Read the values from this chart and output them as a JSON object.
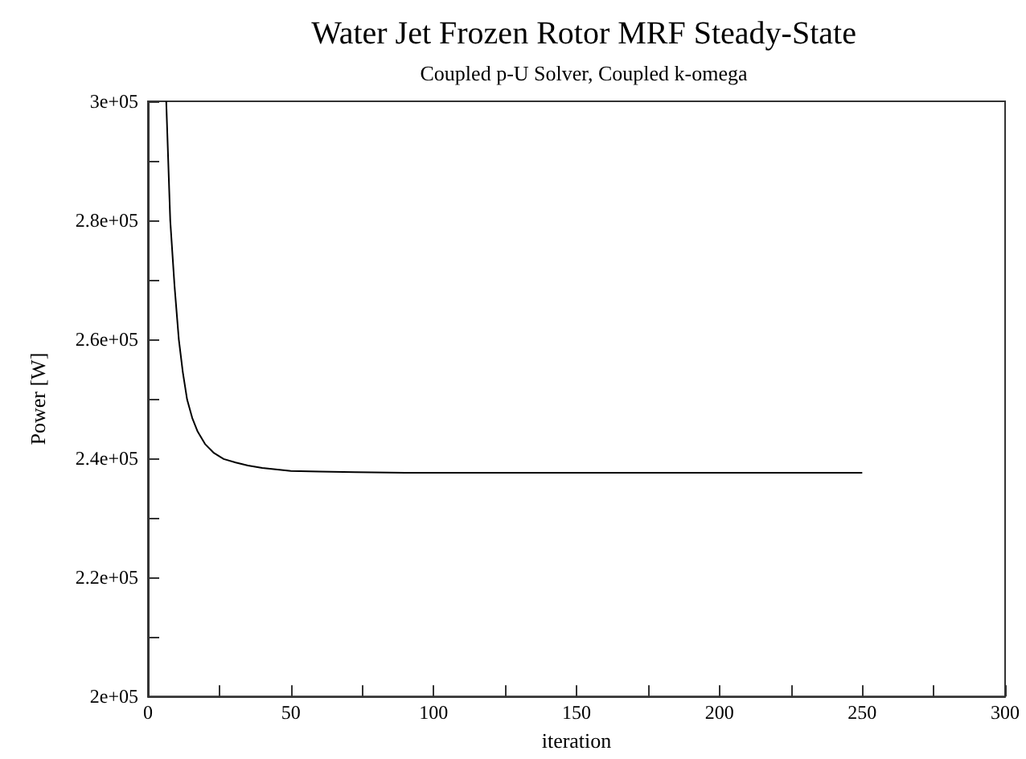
{
  "chart_data": {
    "type": "line",
    "title": "Water Jet Frozen Rotor MRF Steady-State",
    "subtitle": "Coupled p-U Solver, Coupled k-omega",
    "xlabel": "iteration",
    "ylabel": "Power [W]",
    "x": [
      6.4,
      7.8,
      9.3,
      10.8,
      12.2,
      13.7,
      15.5,
      17.4,
      20,
      23.1,
      26.5,
      30.7,
      35,
      40,
      50,
      60,
      72.6,
      90,
      120,
      150,
      180,
      210,
      250
    ],
    "series": [
      {
        "color": "#000000",
        "values": [
          300000,
          280000,
          269000,
          260000,
          254500,
          249900,
          246800,
          244500,
          242400,
          240900,
          239900,
          239300,
          238800,
          238400,
          237900,
          237800,
          237700,
          237600,
          237600,
          237600,
          237600,
          237600,
          237600
        ]
      }
    ],
    "xlim": [
      0,
      300
    ],
    "xticks": [
      0,
      50,
      100,
      150,
      200,
      250,
      300
    ],
    "ylim": [
      200000,
      300000
    ],
    "yticks": [
      {
        "value": 200000,
        "label": "2e+05"
      },
      {
        "value": 220000,
        "label": "2.2e+05"
      },
      {
        "value": 240000,
        "label": "2.4e+05"
      },
      {
        "value": 260000,
        "label": "2.6e+05"
      },
      {
        "value": 280000,
        "label": "2.8e+05"
      },
      {
        "value": 300000,
        "label": "3e+05"
      }
    ],
    "grid": false,
    "marker": "none",
    "line_style": "solid"
  }
}
